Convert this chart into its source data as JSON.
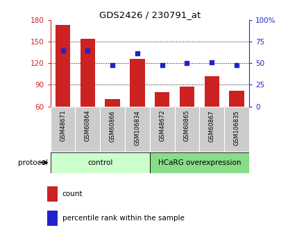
{
  "title": "GDS2426 / 230791_at",
  "samples": [
    "GSM48671",
    "GSM60864",
    "GSM60866",
    "GSM106834",
    "GSM48672",
    "GSM60865",
    "GSM60867",
    "GSM106835"
  ],
  "count_values": [
    174,
    154,
    70,
    126,
    80,
    88,
    102,
    82
  ],
  "percentile_values": [
    65,
    65,
    48,
    62,
    48,
    50,
    51,
    48
  ],
  "ylim_left": [
    60,
    180
  ],
  "ylim_right": [
    0,
    100
  ],
  "yticks_left": [
    60,
    90,
    120,
    150,
    180
  ],
  "yticks_right": [
    0,
    25,
    50,
    75,
    100
  ],
  "ytick_labels_right": [
    "0",
    "25",
    "50",
    "75",
    "100%"
  ],
  "control_samples": [
    "GSM48671",
    "GSM60864",
    "GSM60866",
    "GSM106834"
  ],
  "overexpression_samples": [
    "GSM48672",
    "GSM60865",
    "GSM60867",
    "GSM106835"
  ],
  "control_label": "control",
  "overexpression_label": "HCaRG overexpression",
  "protocol_label": "protocol",
  "bar_color": "#CC2222",
  "dot_color": "#2222CC",
  "control_bg": "#CCFFCC",
  "overexpression_bg": "#88DD88",
  "xlabel_color": "#CC2222",
  "ylabel_right_color": "#2222CC",
  "legend_count_label": "count",
  "legend_percentile_label": "percentile rank within the sample",
  "sample_bg_color": "#CCCCCC",
  "bar_bottom": 60,
  "grid_yticks": [
    90,
    120,
    150
  ]
}
